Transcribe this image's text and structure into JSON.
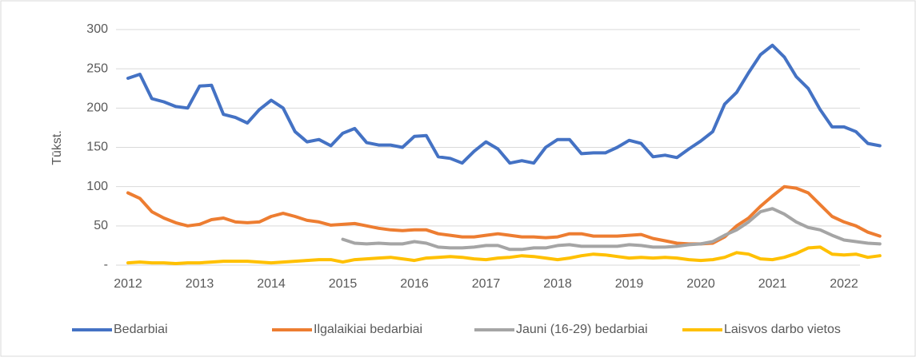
{
  "chart_data": {
    "type": "line",
    "ylabel": "Tūkst.",
    "categories": [
      "2012",
      null,
      null,
      null,
      null,
      null,
      "2013",
      null,
      null,
      null,
      null,
      null,
      "2014",
      null,
      null,
      null,
      null,
      null,
      "2015",
      null,
      null,
      null,
      null,
      null,
      "2016",
      null,
      null,
      null,
      null,
      null,
      "2017",
      null,
      null,
      null,
      null,
      null,
      "2018",
      null,
      null,
      null,
      null,
      null,
      "2019",
      null,
      null,
      null,
      null,
      null,
      "2020",
      null,
      null,
      null,
      null,
      null,
      "2021",
      null,
      null,
      null,
      null,
      null,
      "2022",
      null,
      null,
      null
    ],
    "series": [
      {
        "name": "Bedarbiai",
        "color": "#4472c4",
        "values": [
          238,
          243,
          212,
          208,
          202,
          200,
          228,
          229,
          192,
          188,
          181,
          198,
          210,
          200,
          170,
          157,
          160,
          152,
          168,
          174,
          156,
          153,
          153,
          150,
          164,
          165,
          138,
          136,
          130,
          145,
          157,
          148,
          130,
          133,
          130,
          150,
          160,
          160,
          142,
          143,
          143,
          150,
          159,
          155,
          138,
          140,
          137,
          148,
          158,
          170,
          205,
          220,
          245,
          268,
          280,
          265,
          240,
          225,
          198,
          176,
          176,
          170,
          155,
          152
        ]
      },
      {
        "name": "Ilgalaikiai bedarbiai",
        "color": "#ed7d31",
        "values": [
          92,
          85,
          68,
          60,
          54,
          50,
          52,
          58,
          60,
          55,
          54,
          55,
          62,
          66,
          62,
          57,
          55,
          51,
          52,
          53,
          50,
          47,
          45,
          44,
          45,
          45,
          40,
          38,
          36,
          36,
          38,
          40,
          38,
          36,
          36,
          35,
          36,
          40,
          40,
          37,
          37,
          37,
          38,
          39,
          34,
          31,
          28,
          27,
          27,
          28,
          36,
          50,
          60,
          75,
          88,
          100,
          98,
          92,
          77,
          62,
          55,
          50,
          42,
          37
        ]
      },
      {
        "name": "Jauni (16-29) bedarbiai",
        "color": "#a5a5a5",
        "values": [
          null,
          null,
          null,
          null,
          null,
          null,
          null,
          null,
          null,
          null,
          null,
          null,
          null,
          null,
          null,
          null,
          null,
          null,
          33,
          28,
          27,
          28,
          27,
          27,
          30,
          28,
          23,
          22,
          22,
          23,
          25,
          25,
          20,
          20,
          22,
          22,
          25,
          26,
          24,
          24,
          24,
          24,
          26,
          25,
          23,
          23,
          24,
          26,
          27,
          30,
          38,
          45,
          55,
          68,
          72,
          65,
          55,
          48,
          45,
          38,
          32,
          30,
          28,
          27
        ]
      },
      {
        "name": "Laisvos darbo vietos",
        "color": "#ffc000",
        "values": [
          3,
          4,
          3,
          3,
          2,
          3,
          3,
          4,
          5,
          5,
          5,
          4,
          3,
          4,
          5,
          6,
          7,
          7,
          4,
          7,
          8,
          9,
          10,
          8,
          6,
          9,
          10,
          11,
          10,
          8,
          7,
          9,
          10,
          12,
          11,
          9,
          7,
          9,
          12,
          14,
          13,
          11,
          9,
          10,
          9,
          10,
          9,
          7,
          6,
          7,
          10,
          16,
          14,
          8,
          7,
          10,
          15,
          22,
          23,
          14,
          13,
          14,
          10,
          12
        ]
      }
    ],
    "ylim": [
      0,
      300
    ],
    "yticks": [
      {
        "value": 0,
        "label": "-"
      },
      50,
      100,
      150,
      200,
      250,
      300
    ],
    "grid": true,
    "legend": "bottom"
  }
}
